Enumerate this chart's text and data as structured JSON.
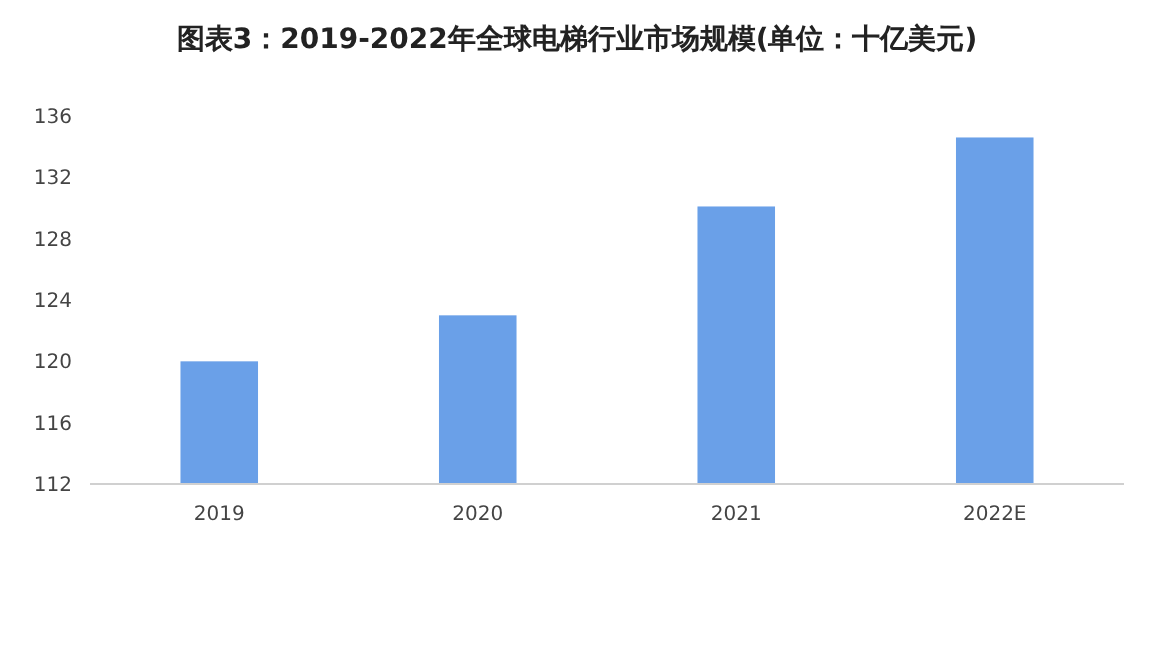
{
  "chart_data": {
    "type": "bar",
    "title": "图表3：2019-2022年全球电梯行业市场规模(单位：十亿美元)",
    "categories": [
      "2019",
      "2020",
      "2021",
      "2022E"
    ],
    "values": [
      120,
      123,
      130.1,
      134.6
    ],
    "color": "#6aa0e8",
    "ylim": [
      112,
      136
    ],
    "yticks": [
      112,
      116,
      120,
      124,
      128,
      132,
      136
    ],
    "grid": false
  }
}
